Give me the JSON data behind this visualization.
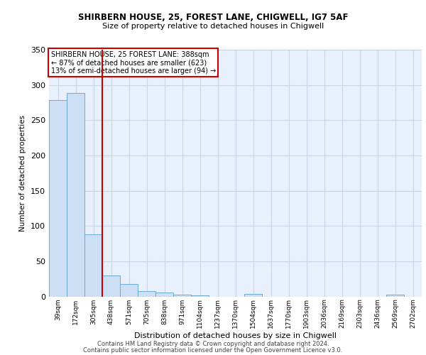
{
  "title1": "SHIRBERN HOUSE, 25, FOREST LANE, CHIGWELL, IG7 5AF",
  "title2": "Size of property relative to detached houses in Chigwell",
  "xlabel": "Distribution of detached houses by size in Chigwell",
  "ylabel": "Number of detached properties",
  "footer1": "Contains HM Land Registry data © Crown copyright and database right 2024.",
  "footer2": "Contains public sector information licensed under the Open Government Licence v3.0.",
  "bins": [
    "39sqm",
    "172sqm",
    "305sqm",
    "438sqm",
    "571sqm",
    "705sqm",
    "838sqm",
    "971sqm",
    "1104sqm",
    "1237sqm",
    "1370sqm",
    "1504sqm",
    "1637sqm",
    "1770sqm",
    "1903sqm",
    "2036sqm",
    "2169sqm",
    "2303sqm",
    "2436sqm",
    "2569sqm",
    "2702sqm"
  ],
  "values": [
    278,
    289,
    88,
    30,
    18,
    8,
    6,
    3,
    2,
    0,
    0,
    4,
    0,
    0,
    0,
    0,
    0,
    0,
    0,
    3,
    0
  ],
  "bar_color": "#ccdff5",
  "bar_edge_color": "#6aabd2",
  "property_line_x": 2.5,
  "property_line_color": "#cc0000",
  "annotation_text": "SHIRBERN HOUSE, 25 FOREST LANE: 388sqm\n← 87% of detached houses are smaller (623)\n13% of semi-detached houses are larger (94) →",
  "annotation_box_color": "white",
  "annotation_box_edge_color": "#cc0000",
  "ylim": [
    0,
    350
  ],
  "yticks": [
    0,
    50,
    100,
    150,
    200,
    250,
    300,
    350
  ],
  "plot_bg_color": "#e8f0fb",
  "grid_color": "#c8d4e8"
}
